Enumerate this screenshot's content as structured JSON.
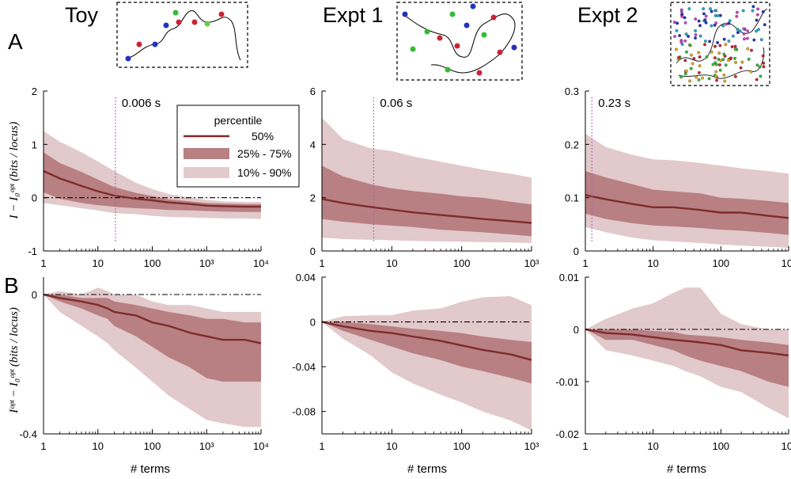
{
  "colors": {
    "median": "#7e2b2c",
    "band_25_75": "#b88082",
    "band_10_90": "#e2c9cb",
    "vline": "#a05fb8",
    "axis": "#000000"
  },
  "row_labels": [
    "A",
    "B"
  ],
  "column_titles": [
    "Toy",
    "Expt 1",
    "Expt 2"
  ],
  "ylabels": {
    "A": "I − I₀ᵒᵖᵗ (bits / locus)",
    "B": "Iᵒᵖᵗ − I₀ᵒᵖᵗ (bits / locus)"
  },
  "xlabel": "# terms",
  "legend": {
    "title": "percentile",
    "entries": [
      "50%",
      "25% - 75%",
      "10% - 90%"
    ]
  },
  "chart_data": [
    {
      "id": "A-toy",
      "type": "area",
      "xscale": "log",
      "xlim": [
        1,
        10000
      ],
      "ylim": [
        -1,
        2
      ],
      "xticks": [
        "1",
        "10",
        "100",
        "10³",
        "10⁴"
      ],
      "xtick_vals": [
        1,
        10,
        100,
        1000,
        10000
      ],
      "yticks": [
        "-1",
        "0",
        "1",
        "2"
      ],
      "ytick_vals": [
        -1,
        0,
        1,
        2
      ],
      "zero_line": 0,
      "vline_x": 21,
      "vline_label": "0.006 s",
      "x": [
        1,
        2,
        5,
        10,
        20,
        50,
        100,
        200,
        500,
        1000,
        2000,
        5000,
        10000
      ],
      "p10": [
        -0.1,
        -0.14,
        -0.2,
        -0.24,
        -0.29,
        -0.31,
        -0.34,
        -0.36,
        -0.37,
        -0.38,
        -0.39,
        -0.39,
        -0.4
      ],
      "p25": [
        0.1,
        -0.02,
        -0.1,
        -0.14,
        -0.17,
        -0.2,
        -0.21,
        -0.23,
        -0.24,
        -0.25,
        -0.26,
        -0.27,
        -0.27
      ],
      "p50": [
        0.5,
        0.36,
        0.22,
        0.12,
        0.04,
        -0.02,
        -0.05,
        -0.09,
        -0.12,
        -0.15,
        -0.16,
        -0.17,
        -0.17
      ],
      "p75": [
        0.85,
        0.65,
        0.48,
        0.34,
        0.2,
        0.09,
        0.03,
        -0.03,
        -0.07,
        -0.1,
        -0.11,
        -0.12,
        -0.12
      ],
      "p90": [
        1.25,
        1.05,
        0.85,
        0.68,
        0.5,
        0.28,
        0.16,
        0.07,
        0.0,
        -0.04,
        -0.07,
        -0.08,
        -0.08
      ]
    },
    {
      "id": "A-expt1",
      "type": "area",
      "xscale": "log",
      "xlim": [
        1,
        1000
      ],
      "ylim": [
        0,
        6
      ],
      "xticks": [
        "1",
        "10",
        "100",
        "10³"
      ],
      "xtick_vals": [
        1,
        10,
        100,
        1000
      ],
      "yticks": [
        "0",
        "2",
        "4",
        "6"
      ],
      "ytick_vals": [
        0,
        2,
        4,
        6
      ],
      "zero_line": null,
      "vline_x": 5.5,
      "vline_label": "0.06 s",
      "x": [
        1,
        2,
        5,
        10,
        20,
        50,
        100,
        200,
        500,
        1000
      ],
      "p10": [
        0.5,
        0.45,
        0.42,
        0.4,
        0.38,
        0.36,
        0.35,
        0.33,
        0.32,
        0.3
      ],
      "p25": [
        1.2,
        1.1,
        1.0,
        0.95,
        0.9,
        0.8,
        0.75,
        0.7,
        0.62,
        0.55
      ],
      "p50": [
        1.95,
        1.8,
        1.65,
        1.55,
        1.45,
        1.35,
        1.28,
        1.2,
        1.12,
        1.05
      ],
      "p75": [
        3.2,
        2.8,
        2.5,
        2.35,
        2.25,
        2.15,
        2.05,
        2.0,
        1.85,
        1.75
      ],
      "p90": [
        5.0,
        4.2,
        3.85,
        3.75,
        3.55,
        3.35,
        3.2,
        3.05,
        2.9,
        2.75
      ]
    },
    {
      "id": "A-expt2",
      "type": "area",
      "xscale": "log",
      "xlim": [
        1,
        1000
      ],
      "ylim": [
        0,
        0.3
      ],
      "xticks": [
        "1",
        "10",
        "100",
        "10³"
      ],
      "xtick_vals": [
        1,
        10,
        100,
        1000
      ],
      "yticks": [
        "0",
        "0.1",
        "0.2",
        "0.3"
      ],
      "ytick_vals": [
        0,
        0.1,
        0.2,
        0.3
      ],
      "zero_line": null,
      "vline_x": 1.25,
      "vline_label": "0.23 s",
      "x": [
        1,
        2,
        5,
        10,
        20,
        50,
        100,
        200,
        500,
        1000
      ],
      "p10": [
        0.045,
        0.035,
        0.025,
        0.02,
        0.018,
        0.015,
        0.012,
        0.01,
        0.008,
        0.006
      ],
      "p25": [
        0.07,
        0.06,
        0.052,
        0.048,
        0.046,
        0.043,
        0.04,
        0.038,
        0.034,
        0.03
      ],
      "p50": [
        0.105,
        0.097,
        0.088,
        0.082,
        0.082,
        0.077,
        0.072,
        0.072,
        0.066,
        0.062
      ],
      "p75": [
        0.15,
        0.138,
        0.125,
        0.115,
        0.112,
        0.108,
        0.1,
        0.098,
        0.094,
        0.09
      ],
      "p90": [
        0.22,
        0.195,
        0.18,
        0.172,
        0.17,
        0.165,
        0.16,
        0.155,
        0.15,
        0.145
      ]
    },
    {
      "id": "B-toy",
      "type": "area",
      "xscale": "log",
      "xlim": [
        1,
        10000
      ],
      "ylim": [
        -0.4,
        0.05
      ],
      "xticks": [
        "1",
        "10",
        "100",
        "10³",
        "10⁴"
      ],
      "xtick_vals": [
        1,
        10,
        100,
        1000,
        10000
      ],
      "yticks": [
        "0",
        "-0.4"
      ],
      "ytick_vals": [
        0,
        -0.4
      ],
      "zero_line": 0,
      "vline_x": null,
      "vline_label": "",
      "x": [
        1,
        2,
        5,
        10,
        15,
        20,
        50,
        100,
        200,
        500,
        1000,
        2000,
        5000,
        10000
      ],
      "p10": [
        0.0,
        -0.05,
        -0.09,
        -0.12,
        -0.14,
        -0.16,
        -0.21,
        -0.25,
        -0.29,
        -0.33,
        -0.36,
        -0.37,
        -0.38,
        -0.38
      ],
      "p25": [
        0.0,
        -0.02,
        -0.04,
        -0.06,
        -0.07,
        -0.09,
        -0.12,
        -0.15,
        -0.18,
        -0.21,
        -0.24,
        -0.25,
        -0.25,
        -0.25
      ],
      "p50": [
        0.0,
        -0.01,
        -0.02,
        -0.03,
        -0.04,
        -0.05,
        -0.06,
        -0.08,
        -0.09,
        -0.11,
        -0.12,
        -0.13,
        -0.13,
        -0.14
      ],
      "p75": [
        0.0,
        0.0,
        -0.01,
        -0.01,
        -0.01,
        -0.02,
        -0.03,
        -0.04,
        -0.05,
        -0.06,
        -0.07,
        -0.07,
        -0.08,
        -0.08
      ],
      "p90": [
        0.0,
        0.01,
        0.0,
        0.02,
        0.01,
        0.0,
        0.0,
        -0.02,
        -0.03,
        -0.03,
        -0.04,
        -0.05,
        -0.05,
        -0.05
      ]
    },
    {
      "id": "B-expt1",
      "type": "area",
      "xscale": "log",
      "xlim": [
        1,
        1000
      ],
      "ylim": [
        -0.1,
        0.04
      ],
      "xticks": [
        "1",
        "10",
        "100",
        "10³"
      ],
      "xtick_vals": [
        1,
        10,
        100,
        1000
      ],
      "yticks": [
        "0.04",
        "0",
        "-0.04",
        "-0.08"
      ],
      "ytick_vals": [
        0.04,
        0,
        -0.04,
        -0.08
      ],
      "zero_line": 0,
      "vline_x": null,
      "vline_label": "",
      "x": [
        1,
        2,
        5,
        10,
        20,
        50,
        100,
        200,
        500,
        1000
      ],
      "p10": [
        0.0,
        -0.015,
        -0.03,
        -0.045,
        -0.055,
        -0.065,
        -0.072,
        -0.08,
        -0.088,
        -0.097
      ],
      "p25": [
        0.0,
        -0.008,
        -0.016,
        -0.022,
        -0.028,
        -0.034,
        -0.04,
        -0.044,
        -0.05,
        -0.055
      ],
      "p50": [
        0.0,
        -0.004,
        -0.008,
        -0.01,
        -0.013,
        -0.017,
        -0.021,
        -0.025,
        -0.029,
        -0.034
      ],
      "p75": [
        0.0,
        0.0,
        -0.002,
        -0.004,
        -0.006,
        -0.008,
        -0.01,
        -0.013,
        -0.016,
        -0.018
      ],
      "p90": [
        0.0,
        0.005,
        0.006,
        0.006,
        0.01,
        0.012,
        0.018,
        0.022,
        0.023,
        0.015
      ]
    },
    {
      "id": "B-expt2",
      "type": "area",
      "xscale": "log",
      "xlim": [
        1,
        1000
      ],
      "ylim": [
        -0.02,
        0.01
      ],
      "xticks": [
        "1",
        "10",
        "100",
        "10³"
      ],
      "xtick_vals": [
        1,
        10,
        100,
        1000
      ],
      "yticks": [
        "0.01",
        "0",
        "-0.01",
        "-0.02"
      ],
      "ytick_vals": [
        0.01,
        0,
        -0.01,
        -0.02
      ],
      "zero_line": 0,
      "vline_x": null,
      "vline_label": "",
      "x": [
        1,
        2,
        5,
        10,
        20,
        30,
        50,
        100,
        200,
        500,
        1000
      ],
      "p10": [
        0.0,
        -0.004,
        -0.005,
        -0.006,
        -0.007,
        -0.008,
        -0.009,
        -0.011,
        -0.012,
        -0.015,
        -0.017
      ],
      "p25": [
        0.0,
        -0.002,
        -0.002,
        -0.003,
        -0.004,
        -0.005,
        -0.006,
        -0.007,
        -0.008,
        -0.01,
        -0.011
      ],
      "p50": [
        0.0,
        -0.0007,
        -0.001,
        -0.0015,
        -0.002,
        -0.0022,
        -0.0025,
        -0.003,
        -0.004,
        -0.0045,
        -0.005
      ],
      "p75": [
        0.0,
        0.0,
        0.0,
        -0.0003,
        -0.0005,
        -0.001,
        -0.0012,
        -0.0015,
        -0.002,
        -0.0025,
        -0.003
      ],
      "p90": [
        0.0,
        0.002,
        0.004,
        0.005,
        0.007,
        0.008,
        0.008,
        0.003,
        0.001,
        0.0,
        0.0
      ]
    }
  ]
}
